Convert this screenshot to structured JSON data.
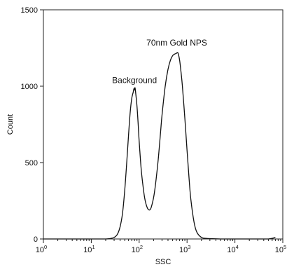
{
  "chart_data": {
    "type": "line",
    "title": "",
    "xlabel": "SSC",
    "ylabel": "Count",
    "x_scale": "log",
    "xlim": [
      1,
      100000
    ],
    "ylim": [
      0,
      1500
    ],
    "x_ticks": [
      {
        "value": 1,
        "base": "10",
        "exp": "0"
      },
      {
        "value": 10,
        "base": "10",
        "exp": "1"
      },
      {
        "value": 100,
        "base": "10",
        "exp": "2"
      },
      {
        "value": 1000,
        "base": "10",
        "exp": "3"
      },
      {
        "value": 10000,
        "base": "10",
        "exp": "4"
      },
      {
        "value": 100000,
        "base": "10",
        "exp": "5"
      }
    ],
    "y_ticks": [
      {
        "value": 0,
        "label": "0"
      },
      {
        "value": 500,
        "label": "500"
      },
      {
        "value": 1000,
        "label": "1000"
      },
      {
        "value": 1500,
        "label": "1500"
      }
    ],
    "grid": false,
    "annotations": [
      {
        "text": "Background",
        "x": 80,
        "y": 1020
      },
      {
        "text": "70nm Gold NPS",
        "x": 610,
        "y": 1265
      }
    ],
    "series": [
      {
        "x": [
          1,
          10,
          20,
          25,
          30,
          35,
          40,
          45,
          50,
          55,
          60,
          65,
          70,
          75,
          78,
          80,
          82,
          85,
          90,
          95,
          100,
          110,
          120,
          130,
          140,
          150,
          160,
          170,
          180,
          200,
          220,
          250,
          280,
          300,
          350,
          400,
          450,
          500,
          550,
          600,
          620,
          650,
          700,
          750,
          800,
          900,
          1000,
          1100,
          1200,
          1400,
          1600,
          2000,
          2500,
          3000,
          5000,
          10000,
          20000,
          50000,
          70000
        ],
        "y": [
          0,
          0,
          0,
          3,
          10,
          30,
          80,
          170,
          320,
          500,
          680,
          830,
          920,
          960,
          985,
          975,
          990,
          950,
          870,
          760,
          640,
          460,
          350,
          270,
          225,
          200,
          190,
          193,
          210,
          270,
          360,
          520,
          700,
          810,
          1000,
          1110,
          1170,
          1200,
          1210,
          1215,
          1220,
          1215,
          1170,
          1090,
          1000,
          790,
          580,
          400,
          260,
          110,
          45,
          10,
          4,
          2,
          0,
          0,
          0,
          0,
          10
        ]
      }
    ]
  }
}
